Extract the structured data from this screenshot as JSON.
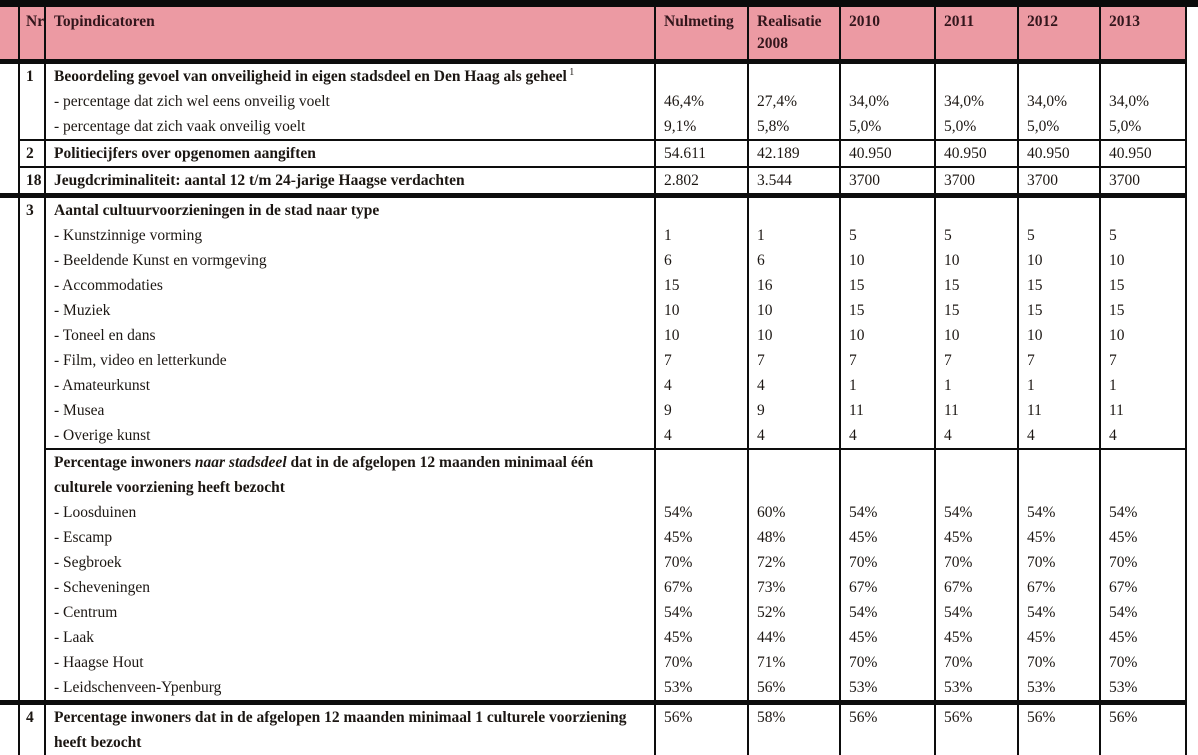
{
  "page": {
    "top_rule_color": "#0a0a0a",
    "background": "#ffffff"
  },
  "table": {
    "header_bg": "#ec9aa3",
    "ink": "#1c1713",
    "header": {
      "nr": "Nr",
      "indicator": "Topindicatoren",
      "columns": [
        "Nulmeting",
        "Realisatie\n2008",
        "2010",
        "2011",
        "2012",
        "2013"
      ]
    },
    "sections": [
      {
        "rows": [
          {
            "nr": "1",
            "blocks": [
              {
                "lines": [
                  {
                    "style": "title",
                    "text": "Beoordeling gevoel van onveiligheid in eigen stadsdeel en Den Haag als geheel",
                    "sup": "1",
                    "values": [
                      "",
                      "",
                      "",
                      "",
                      "",
                      ""
                    ]
                  },
                  {
                    "style": "sub",
                    "text": "- percentage dat zich wel eens onveilig voelt",
                    "values": [
                      "46,4%",
                      "27,4%",
                      "34,0%",
                      "34,0%",
                      "34,0%",
                      "34,0%"
                    ]
                  },
                  {
                    "style": "sub",
                    "text": "- percentage dat zich vaak onveilig voelt",
                    "values": [
                      "9,1%",
                      "5,8%",
                      "5,0%",
                      "5,0%",
                      "5,0%",
                      "5,0%"
                    ]
                  }
                ]
              }
            ]
          },
          {
            "nr": "2",
            "blocks": [
              {
                "lines": [
                  {
                    "style": "title",
                    "text": "Politiecijfers over opgenomen aangiften",
                    "values": [
                      "54.611",
                      "42.189",
                      "40.950",
                      "40.950",
                      "40.950",
                      "40.950"
                    ]
                  }
                ]
              }
            ]
          },
          {
            "nr": "18",
            "blocks": [
              {
                "lines": [
                  {
                    "style": "title",
                    "text": "Jeugdcriminaliteit: aantal 12 t/m 24-jarige Haagse verdachten",
                    "values": [
                      "2.802",
                      "3.544",
                      "3700",
                      "3700",
                      "3700",
                      "3700"
                    ]
                  }
                ]
              }
            ]
          }
        ]
      },
      {
        "rows": [
          {
            "nr": "3",
            "blocks": [
              {
                "lines": [
                  {
                    "style": "title",
                    "text": "Aantal cultuurvoorzieningen in de stad naar type",
                    "values": [
                      "",
                      "",
                      "",
                      "",
                      "",
                      ""
                    ]
                  },
                  {
                    "style": "sub",
                    "text": "- Kunstzinnige vorming",
                    "values": [
                      "1",
                      "1",
                      "5",
                      "5",
                      "5",
                      "5"
                    ]
                  },
                  {
                    "style": "sub",
                    "text": "- Beeldende Kunst en vormgeving",
                    "values": [
                      "6",
                      "6",
                      "10",
                      "10",
                      "10",
                      "10"
                    ]
                  },
                  {
                    "style": "sub",
                    "text": "- Accommodaties",
                    "values": [
                      "15",
                      "16",
                      "15",
                      "15",
                      "15",
                      "15"
                    ]
                  },
                  {
                    "style": "sub",
                    "text": "- Muziek",
                    "values": [
                      "10",
                      "10",
                      "15",
                      "15",
                      "15",
                      "15"
                    ]
                  },
                  {
                    "style": "sub",
                    "text": "- Toneel en dans",
                    "values": [
                      "10",
                      "10",
                      "10",
                      "10",
                      "10",
                      "10"
                    ]
                  },
                  {
                    "style": "sub",
                    "text": "- Film, video en letterkunde",
                    "values": [
                      "7",
                      "7",
                      "7",
                      "7",
                      "7",
                      "7"
                    ]
                  },
                  {
                    "style": "sub",
                    "text": "- Amateurkunst",
                    "values": [
                      "4",
                      "4",
                      "1",
                      "1",
                      "1",
                      "1"
                    ]
                  },
                  {
                    "style": "sub",
                    "text": "- Musea",
                    "values": [
                      "9",
                      "9",
                      "11",
                      "11",
                      "11",
                      "11"
                    ]
                  },
                  {
                    "style": "sub",
                    "text": "- Overige kunst",
                    "values": [
                      "4",
                      "4",
                      "4",
                      "4",
                      "4",
                      "4"
                    ]
                  }
                ]
              },
              {
                "lines": [
                  {
                    "style": "title",
                    "parts": [
                      {
                        "text": "Percentage inwoners "
                      },
                      {
                        "text": "naar stadsdeel",
                        "italic": true
                      },
                      {
                        "text": " dat in de afgelopen 12 maanden minimaal één"
                      }
                    ],
                    "values": [
                      "",
                      "",
                      "",
                      "",
                      "",
                      ""
                    ]
                  },
                  {
                    "style": "title",
                    "text": "culturele voorziening heeft bezocht",
                    "values": [
                      "",
                      "",
                      "",
                      "",
                      "",
                      ""
                    ]
                  },
                  {
                    "style": "sub",
                    "text": "- Loosduinen",
                    "values": [
                      "54%",
                      "60%",
                      "54%",
                      "54%",
                      "54%",
                      "54%"
                    ]
                  },
                  {
                    "style": "sub",
                    "text": "- Escamp",
                    "values": [
                      "45%",
                      "48%",
                      "45%",
                      "45%",
                      "45%",
                      "45%"
                    ]
                  },
                  {
                    "style": "sub",
                    "text": "- Segbroek",
                    "values": [
                      "70%",
                      "72%",
                      "70%",
                      "70%",
                      "70%",
                      "70%"
                    ]
                  },
                  {
                    "style": "sub",
                    "text": "- Scheveningen",
                    "values": [
                      "67%",
                      "73%",
                      "67%",
                      "67%",
                      "67%",
                      "67%"
                    ]
                  },
                  {
                    "style": "sub",
                    "text": "- Centrum",
                    "values": [
                      "54%",
                      "52%",
                      "54%",
                      "54%",
                      "54%",
                      "54%"
                    ]
                  },
                  {
                    "style": "sub",
                    "text": "- Laak",
                    "values": [
                      "45%",
                      "44%",
                      "45%",
                      "45%",
                      "45%",
                      "45%"
                    ]
                  },
                  {
                    "style": "sub",
                    "text": "- Haagse Hout",
                    "values": [
                      "70%",
                      "71%",
                      "70%",
                      "70%",
                      "70%",
                      "70%"
                    ]
                  },
                  {
                    "style": "sub",
                    "text": "- Leidschenveen-Ypenburg",
                    "values": [
                      "53%",
                      "56%",
                      "53%",
                      "53%",
                      "53%",
                      "53%"
                    ]
                  }
                ]
              }
            ]
          }
        ]
      },
      {
        "rows": [
          {
            "nr": "4",
            "blocks": [
              {
                "lines": [
                  {
                    "style": "title",
                    "text": "Percentage inwoners dat in de afgelopen 12 maanden minimaal 1 culturele voorziening",
                    "values": [
                      "56%",
                      "58%",
                      "56%",
                      "56%",
                      "56%",
                      "56%"
                    ]
                  },
                  {
                    "style": "title",
                    "text": "heeft bezocht",
                    "values": [
                      "",
                      "",
                      "",
                      "",
                      "",
                      ""
                    ]
                  }
                ]
              }
            ]
          }
        ]
      }
    ]
  }
}
